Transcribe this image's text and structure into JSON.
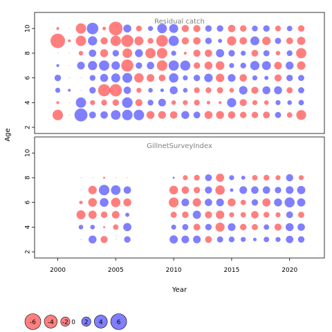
{
  "chart_data": {
    "type": "scatter",
    "subtype": "bubble-residuals",
    "xlabel": "Year",
    "ylabel": "Age",
    "xlim": [
      1998,
      2023
    ],
    "x_ticks": [
      2000,
      2005,
      2010,
      2015,
      2020
    ],
    "y_ticks": [
      2,
      4,
      6,
      8,
      10
    ],
    "colors": {
      "positive": "#0000ff",
      "negative": "#ff0000",
      "opacity": 0.5
    },
    "legend": {
      "placement": "bottom",
      "values": [
        -6,
        -4,
        -2,
        0,
        2,
        4,
        6
      ],
      "labels": [
        "-6",
        "-4",
        "-2",
        "0",
        "2",
        "4",
        "6"
      ]
    },
    "panels": [
      {
        "title": "Residual catch",
        "ylim": [
          1.5,
          11.3
        ],
        "years": [
          2000,
          2001,
          2002,
          2003,
          2004,
          2005,
          2006,
          2007,
          2008,
          2009,
          2010,
          2011,
          2012,
          2013,
          2014,
          2015,
          2016,
          2017,
          2018,
          2019,
          2020,
          2021
        ],
        "ages": [
          3,
          4,
          5,
          6,
          7,
          8,
          9,
          10
        ],
        "residuals": {
          "10": [
            -0.2,
            0,
            -2.5,
            3.2,
            -0.3,
            -4.5,
            1.5,
            -0.8,
            0.6,
            2.2,
            1.9,
            -1.2,
            -1.2,
            1.0,
            1.0,
            -1.3,
            -1.0,
            0.8,
            1.0,
            -0.8,
            0.7,
            -1.0
          ],
          "9": [
            -5.0,
            -0.2,
            -2.5,
            2.0,
            -1.2,
            -2.6,
            -3.5,
            -1.9,
            -0.8,
            -3.2,
            2.5,
            -1.2,
            -1.3,
            1.0,
            0.4,
            -2.0,
            -1.3,
            1.9,
            -1.7,
            0.9,
            -1.1,
            -1.6
          ],
          "8": [
            0,
            0,
            -0.5,
            1.3,
            -1.5,
            1.0,
            -2.2,
            1.5,
            -2.5,
            -2.6,
            0.6,
            -0.2,
            -1.2,
            -1.3,
            1.6,
            1.0,
            0.6,
            -1.1,
            0.9,
            -0.5,
            0.8,
            -2.5
          ],
          "7": [
            0.2,
            0,
            1.4,
            2.0,
            2.5,
            1.7,
            -3.5,
            1.0,
            1.3,
            -2.6,
            2.5,
            2.4,
            -1.0,
            -1.5,
            -1.8,
            0.6,
            0.8,
            2.0,
            1.9,
            -1.4,
            1.5,
            -1.7
          ],
          "6": [
            1.0,
            0,
            0,
            0.8,
            1.5,
            1.9,
            2.3,
            -2.1,
            -1.4,
            -1.1,
            2.1,
            0.6,
            1.0,
            1.7,
            -1.7,
            1.4,
            -1.3,
            0.6,
            0.4,
            -1.2,
            1.0,
            0.9
          ],
          "5": [
            0.6,
            0.2,
            0,
            1.0,
            -3.5,
            -3.6,
            1.3,
            -0.6,
            0.5,
            0.3,
            1.5,
            0.5,
            -0.8,
            -0.8,
            -0.9,
            -0.5,
            1.7,
            -1.2,
            1.5,
            1.5,
            -0.9,
            0.9
          ],
          "4": [
            -0.2,
            0,
            2.5,
            -0.6,
            -0.8,
            -1.0,
            2.6,
            -1.2,
            0.8,
            1.4,
            -0.5,
            -0.6,
            -0.8,
            -0.3,
            -0.2,
            2.0,
            -1.2,
            -0.6,
            -0.5,
            0.6,
            0.5,
            0.7
          ],
          "3": [
            -2.6,
            0,
            4.0,
            1.1,
            1.3,
            2.2,
            2.6,
            2.6,
            -1.5,
            -1.4,
            -1.3,
            1.5,
            1.1,
            -1.5,
            -1.5,
            -1.3,
            -1.0,
            -1.0,
            -1.1,
            0.9,
            -0.7,
            -2.3
          ]
        }
      },
      {
        "title": "GillnetSurveyIndex",
        "ylim": [
          1.5,
          11.3
        ],
        "years": [
          2002,
          2003,
          2004,
          2005,
          2006,
          2010,
          2011,
          2012,
          2013,
          2014,
          2015,
          2016,
          2017,
          2018,
          2019,
          2020,
          2021
        ],
        "ages": [
          3,
          4,
          5,
          6,
          7,
          8
        ],
        "residuals": {
          "8": [
            0,
            0,
            -0.1,
            0,
            0,
            0.1,
            -0.6,
            -0.8,
            1.1,
            -1.6,
            0.6,
            0.4,
            -0.7,
            -0.8,
            -0.6,
            1.2,
            -0.6
          ],
          "7": [
            0,
            -1.7,
            2.6,
            2.2,
            1.3,
            -1.8,
            -1.3,
            -1.0,
            1.2,
            -2.1,
            0.3,
            1.4,
            1.3,
            1.3,
            1.0,
            1.4,
            1.6
          ],
          "6": [
            -0.3,
            -1.8,
            1.8,
            -2.1,
            -1.5,
            -2.3,
            1.4,
            -1.7,
            1.3,
            1.4,
            -1.5,
            -0.7,
            1.0,
            -1.6,
            1.5,
            2.4,
            1.6
          ],
          "5": [
            -1.9,
            -1.6,
            -1.0,
            -1.4,
            0.4,
            -0.9,
            -1.0,
            1.6,
            -1.2,
            -1.7,
            -0.6,
            -0.7,
            -1.3,
            -0.8,
            -0.6,
            1.1,
            -0.9
          ],
          "4": [
            0.5,
            0.5,
            -0.1,
            -0.7,
            1.6,
            0.6,
            0.9,
            -1.1,
            1.0,
            -2.0,
            1.4,
            -1.0,
            -0.9,
            0.7,
            -1.2,
            1.5,
            1.3
          ],
          "3": [
            0,
            1.5,
            -1.2,
            0,
            1.0,
            1.6,
            1.4,
            1.4,
            -1.1,
            0.9,
            0.8,
            0.6,
            0.3,
            0.7,
            0.6,
            1.3,
            1.0
          ]
        }
      }
    ]
  }
}
